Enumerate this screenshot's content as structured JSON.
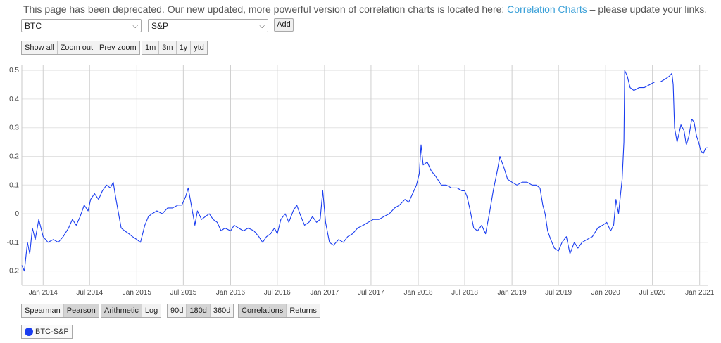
{
  "notice": {
    "text_before": "This page has been deprecated. Our new updated, more powerful version of correlation charts is located here:",
    "link": "Correlation Charts",
    "text_after": "– please update your links."
  },
  "selectors": {
    "asset1": "BTC",
    "asset2": "S&P",
    "add_label": "Add"
  },
  "zoom_buttons": [
    "Show all",
    "Zoom out",
    "Prev zoom"
  ],
  "range_buttons": [
    "1m",
    "3m",
    "1y",
    "ytd"
  ],
  "method_buttons": [
    {
      "label": "Spearman",
      "active": false
    },
    {
      "label": "Pearson",
      "active": true
    }
  ],
  "scale_buttons": [
    {
      "label": "Arithmetic",
      "active": true
    },
    {
      "label": "Log",
      "active": false
    }
  ],
  "window_buttons": [
    {
      "label": "90d",
      "active": false
    },
    {
      "label": "180d",
      "active": true
    },
    {
      "label": "360d",
      "active": false
    }
  ],
  "view_buttons": [
    {
      "label": "Correlations",
      "active": true
    },
    {
      "label": "Returns",
      "active": false
    }
  ],
  "legend": {
    "label": "BTC-S&P",
    "color": "#1a3df0"
  },
  "chart_data": {
    "type": "line",
    "ylim": [
      -0.25,
      0.52
    ],
    "y_ticks": [
      -0.2,
      -0.1,
      0,
      0.1,
      0.2,
      0.3,
      0.4,
      0.5
    ],
    "y_tick_labels": [
      "-0.2",
      "-0.1",
      "0",
      "0.1",
      "0.2",
      "0.3",
      "0.4",
      "0.5"
    ],
    "x_range": [
      "2013-10-10",
      "2021-02-01"
    ],
    "x_ticks": [
      "2014-01-01",
      "2014-07-01",
      "2015-01-01",
      "2015-07-01",
      "2016-01-01",
      "2016-07-01",
      "2017-01-01",
      "2017-07-01",
      "2018-01-01",
      "2018-07-01",
      "2019-01-01",
      "2019-07-01",
      "2020-01-01",
      "2020-07-01",
      "2021-01-01"
    ],
    "x_tick_labels": [
      "Jan 2014",
      "Jul 2014",
      "Jan 2015",
      "Jul 2015",
      "Jan 2016",
      "Jul 2016",
      "Jan 2017",
      "Jul 2017",
      "Jan 2018",
      "Jul 2018",
      "Jan 2019",
      "Jul 2019",
      "Jan 2020",
      "Jul 2020",
      "Jan 2021"
    ],
    "grid": true,
    "series": [
      {
        "name": "BTC-S&P",
        "color": "#1a3df0",
        "points": [
          [
            "2013-10-10",
            -0.18
          ],
          [
            "2013-10-20",
            -0.2
          ],
          [
            "2013-11-01",
            -0.1
          ],
          [
            "2013-11-10",
            -0.14
          ],
          [
            "2013-11-20",
            -0.05
          ],
          [
            "2013-12-01",
            -0.09
          ],
          [
            "2013-12-15",
            -0.02
          ],
          [
            "2014-01-01",
            -0.08
          ],
          [
            "2014-01-20",
            -0.1
          ],
          [
            "2014-02-10",
            -0.09
          ],
          [
            "2014-03-01",
            -0.1
          ],
          [
            "2014-03-20",
            -0.08
          ],
          [
            "2014-04-10",
            -0.05
          ],
          [
            "2014-04-25",
            -0.02
          ],
          [
            "2014-05-10",
            -0.04
          ],
          [
            "2014-05-25",
            -0.01
          ],
          [
            "2014-06-10",
            0.03
          ],
          [
            "2014-06-25",
            0.01
          ],
          [
            "2014-07-05",
            0.05
          ],
          [
            "2014-07-20",
            0.07
          ],
          [
            "2014-08-05",
            0.05
          ],
          [
            "2014-08-20",
            0.08
          ],
          [
            "2014-09-05",
            0.1
          ],
          [
            "2014-09-20",
            0.09
          ],
          [
            "2014-10-01",
            0.11
          ],
          [
            "2014-10-10",
            0.06
          ],
          [
            "2014-10-20",
            0.01
          ],
          [
            "2014-11-01",
            -0.05
          ],
          [
            "2014-11-15",
            -0.06
          ],
          [
            "2014-12-01",
            -0.07
          ],
          [
            "2014-12-15",
            -0.08
          ],
          [
            "2015-01-01",
            -0.09
          ],
          [
            "2015-01-15",
            -0.1
          ],
          [
            "2015-02-01",
            -0.04
          ],
          [
            "2015-02-15",
            -0.01
          ],
          [
            "2015-03-01",
            0.0
          ],
          [
            "2015-03-20",
            0.01
          ],
          [
            "2015-04-10",
            0.0
          ],
          [
            "2015-05-01",
            0.02
          ],
          [
            "2015-05-20",
            0.02
          ],
          [
            "2015-06-10",
            0.03
          ],
          [
            "2015-06-25",
            0.03
          ],
          [
            "2015-07-10",
            0.06
          ],
          [
            "2015-07-20",
            0.09
          ],
          [
            "2015-08-01",
            0.03
          ],
          [
            "2015-08-15",
            -0.04
          ],
          [
            "2015-08-25",
            0.01
          ],
          [
            "2015-09-10",
            -0.02
          ],
          [
            "2015-09-25",
            -0.01
          ],
          [
            "2015-10-10",
            0.0
          ],
          [
            "2015-10-25",
            -0.02
          ],
          [
            "2015-11-10",
            -0.03
          ],
          [
            "2015-11-25",
            -0.06
          ],
          [
            "2015-12-10",
            -0.05
          ],
          [
            "2016-01-01",
            -0.06
          ],
          [
            "2016-01-15",
            -0.04
          ],
          [
            "2016-02-01",
            -0.05
          ],
          [
            "2016-02-20",
            -0.06
          ],
          [
            "2016-03-10",
            -0.05
          ],
          [
            "2016-04-01",
            -0.06
          ],
          [
            "2016-04-20",
            -0.08
          ],
          [
            "2016-05-05",
            -0.1
          ],
          [
            "2016-05-20",
            -0.08
          ],
          [
            "2016-06-05",
            -0.07
          ],
          [
            "2016-06-20",
            -0.05
          ],
          [
            "2016-07-01",
            -0.07
          ],
          [
            "2016-07-15",
            -0.02
          ],
          [
            "2016-08-01",
            0.0
          ],
          [
            "2016-08-15",
            -0.03
          ],
          [
            "2016-09-01",
            0.01
          ],
          [
            "2016-09-15",
            0.03
          ],
          [
            "2016-10-01",
            -0.01
          ],
          [
            "2016-10-15",
            -0.04
          ],
          [
            "2016-11-01",
            -0.03
          ],
          [
            "2016-11-15",
            -0.01
          ],
          [
            "2016-12-01",
            -0.03
          ],
          [
            "2016-12-15",
            -0.02
          ],
          [
            "2016-12-25",
            0.08
          ],
          [
            "2017-01-05",
            -0.03
          ],
          [
            "2017-01-20",
            -0.1
          ],
          [
            "2017-02-05",
            -0.11
          ],
          [
            "2017-02-25",
            -0.09
          ],
          [
            "2017-03-15",
            -0.1
          ],
          [
            "2017-04-01",
            -0.08
          ],
          [
            "2017-04-20",
            -0.07
          ],
          [
            "2017-05-10",
            -0.05
          ],
          [
            "2017-06-01",
            -0.04
          ],
          [
            "2017-06-20",
            -0.03
          ],
          [
            "2017-07-10",
            -0.02
          ],
          [
            "2017-08-01",
            -0.02
          ],
          [
            "2017-08-20",
            -0.01
          ],
          [
            "2017-09-10",
            0.0
          ],
          [
            "2017-10-01",
            0.02
          ],
          [
            "2017-10-20",
            0.03
          ],
          [
            "2017-11-10",
            0.05
          ],
          [
            "2017-11-25",
            0.04
          ],
          [
            "2017-12-10",
            0.07
          ],
          [
            "2017-12-25",
            0.1
          ],
          [
            "2018-01-05",
            0.14
          ],
          [
            "2018-01-12",
            0.24
          ],
          [
            "2018-01-20",
            0.17
          ],
          [
            "2018-02-05",
            0.18
          ],
          [
            "2018-02-20",
            0.15
          ],
          [
            "2018-03-10",
            0.13
          ],
          [
            "2018-04-01",
            0.1
          ],
          [
            "2018-04-20",
            0.1
          ],
          [
            "2018-05-10",
            0.09
          ],
          [
            "2018-06-01",
            0.09
          ],
          [
            "2018-06-20",
            0.08
          ],
          [
            "2018-07-01",
            0.08
          ],
          [
            "2018-07-10",
            0.06
          ],
          [
            "2018-07-20",
            0.02
          ],
          [
            "2018-08-05",
            -0.05
          ],
          [
            "2018-08-20",
            -0.06
          ],
          [
            "2018-09-05",
            -0.04
          ],
          [
            "2018-09-20",
            -0.07
          ],
          [
            "2018-10-05",
            0.0
          ],
          [
            "2018-10-20",
            0.08
          ],
          [
            "2018-11-05",
            0.15
          ],
          [
            "2018-11-15",
            0.2
          ],
          [
            "2018-12-01",
            0.16
          ],
          [
            "2018-12-15",
            0.12
          ],
          [
            "2019-01-01",
            0.11
          ],
          [
            "2019-01-20",
            0.1
          ],
          [
            "2019-02-10",
            0.11
          ],
          [
            "2019-03-01",
            0.11
          ],
          [
            "2019-03-20",
            0.1
          ],
          [
            "2019-04-05",
            0.1
          ],
          [
            "2019-04-20",
            0.09
          ],
          [
            "2019-05-01",
            0.03
          ],
          [
            "2019-05-10",
            0.0
          ],
          [
            "2019-05-20",
            -0.06
          ],
          [
            "2019-06-01",
            -0.09
          ],
          [
            "2019-06-15",
            -0.12
          ],
          [
            "2019-07-01",
            -0.13
          ],
          [
            "2019-07-15",
            -0.1
          ],
          [
            "2019-08-01",
            -0.08
          ],
          [
            "2019-08-15",
            -0.14
          ],
          [
            "2019-09-01",
            -0.1
          ],
          [
            "2019-09-15",
            -0.12
          ],
          [
            "2019-10-01",
            -0.1
          ],
          [
            "2019-10-20",
            -0.09
          ],
          [
            "2019-11-10",
            -0.08
          ],
          [
            "2019-12-01",
            -0.05
          ],
          [
            "2019-12-20",
            -0.04
          ],
          [
            "2020-01-05",
            -0.03
          ],
          [
            "2020-01-20",
            -0.06
          ],
          [
            "2020-02-01",
            -0.04
          ],
          [
            "2020-02-10",
            0.05
          ],
          [
            "2020-02-20",
            0.0
          ],
          [
            "2020-02-28",
            0.07
          ],
          [
            "2020-03-05",
            0.12
          ],
          [
            "2020-03-12",
            0.25
          ],
          [
            "2020-03-15",
            0.5
          ],
          [
            "2020-03-25",
            0.48
          ],
          [
            "2020-04-05",
            0.44
          ],
          [
            "2020-04-20",
            0.43
          ],
          [
            "2020-05-10",
            0.44
          ],
          [
            "2020-05-30",
            0.44
          ],
          [
            "2020-06-20",
            0.45
          ],
          [
            "2020-07-10",
            0.46
          ],
          [
            "2020-08-01",
            0.46
          ],
          [
            "2020-08-20",
            0.47
          ],
          [
            "2020-09-05",
            0.48
          ],
          [
            "2020-09-15",
            0.49
          ],
          [
            "2020-09-20",
            0.45
          ],
          [
            "2020-09-25",
            0.3
          ],
          [
            "2020-10-05",
            0.25
          ],
          [
            "2020-10-20",
            0.31
          ],
          [
            "2020-11-01",
            0.29
          ],
          [
            "2020-11-10",
            0.24
          ],
          [
            "2020-11-20",
            0.27
          ],
          [
            "2020-12-01",
            0.33
          ],
          [
            "2020-12-10",
            0.32
          ],
          [
            "2020-12-20",
            0.27
          ],
          [
            "2020-12-28",
            0.25
          ],
          [
            "2021-01-05",
            0.22
          ],
          [
            "2021-01-15",
            0.21
          ],
          [
            "2021-01-25",
            0.23
          ],
          [
            "2021-02-01",
            0.23
          ]
        ]
      }
    ]
  }
}
